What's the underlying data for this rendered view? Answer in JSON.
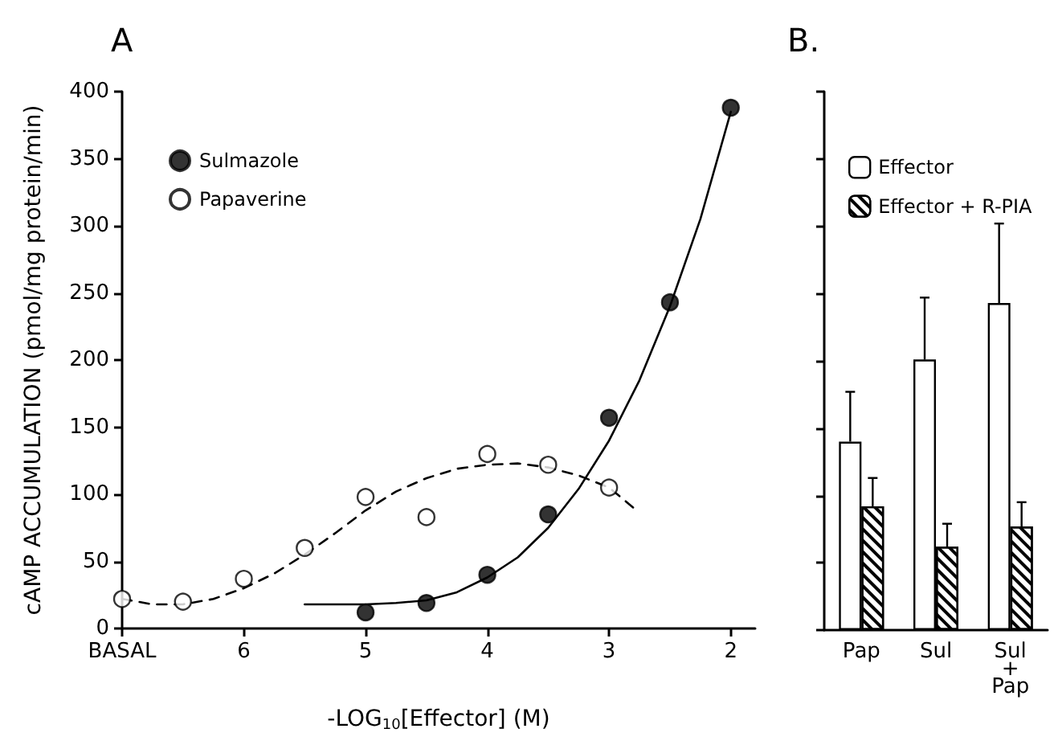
{
  "chart_data": [
    {
      "type": "scatter",
      "title": "A",
      "xlabel": "-LOG$_{10}$[Effector] (M)",
      "ylabel": "cAMP ACCUMULATION (pmol/mg protein/min)",
      "xlim": [
        7,
        1.8
      ],
      "xticks": [
        {
          "value": 7,
          "label": "BASAL"
        },
        6,
        5,
        4,
        3,
        2
      ],
      "ylim": [
        0,
        400
      ],
      "yticks": [
        0,
        50,
        100,
        150,
        200,
        250,
        300,
        350,
        400
      ],
      "grid": false,
      "legend": "top left",
      "series": [
        {
          "name": "Sulmazole",
          "color": "#000000",
          "marker": "circle",
          "x": [
            5,
            4.5,
            4,
            3.5,
            3,
            2.5,
            2
          ],
          "values": [
            12,
            19,
            40,
            85,
            157,
            243,
            388
          ]
        },
        {
          "name": "Papaverine",
          "color": "#ffffff",
          "marker": "circle",
          "x": [
            7,
            6.5,
            6,
            5.5,
            5,
            4.5,
            4,
            3.5,
            3
          ],
          "values": [
            22,
            20,
            37,
            60,
            98,
            83,
            130,
            122,
            105
          ]
        },
        {
          "type": "line",
          "color": "#000000",
          "line_style": "solid",
          "marker": "none",
          "x": [
            5.5,
            5,
            4.75,
            4.5,
            4.25,
            4,
            3.75,
            3.5,
            3.25,
            3,
            2.75,
            2.5,
            2.25,
            2
          ],
          "values": [
            18,
            18,
            19,
            21,
            27,
            38,
            53,
            75,
            104,
            140,
            185,
            240,
            305,
            385
          ]
        },
        {
          "type": "line",
          "color": "#000000",
          "line_style": "dashed",
          "marker": "none",
          "x": [
            7,
            6.75,
            6.5,
            6.25,
            6,
            5.75,
            5.5,
            5.25,
            5,
            4.75,
            4.5,
            4.25,
            4,
            3.75,
            3.5,
            3.25,
            3,
            2.8
          ],
          "values": [
            22,
            18,
            18,
            22,
            30,
            41,
            55,
            71,
            88,
            102,
            112,
            119,
            122,
            123,
            120,
            114,
            105,
            90
          ]
        }
      ]
    },
    {
      "type": "bar",
      "title": "B.",
      "categories": [
        "Pap",
        "Sul",
        "Sul\n+\nPap"
      ],
      "ylim": [
        0,
        400
      ],
      "yticks": [
        {
          "value": 0,
          "label": null
        },
        {
          "value": 50,
          "label": null
        },
        {
          "value": 100,
          "label": null
        },
        {
          "value": 150,
          "label": null
        },
        {
          "value": 200,
          "label": null
        },
        {
          "value": 250,
          "label": null
        },
        {
          "value": 300,
          "label": null
        },
        {
          "value": 350,
          "label": null
        },
        {
          "value": 400,
          "label": null
        }
      ],
      "tick_labels": "x",
      "grid": false,
      "legend": "top left",
      "series": [
        {
          "name": "Effector",
          "color": "#ffffff",
          "values": [
            140,
            201,
            243
          ],
          "errors": [
            [
              140,
              177
            ],
            [
              201,
              247
            ],
            [
              243,
              302
            ]
          ]
        },
        {
          "name": "Effector + R-PIA",
          "color": "#000000",
          "values": [
            92,
            62,
            77
          ],
          "errors": [
            [
              92,
              113
            ],
            [
              62,
              79
            ],
            [
              77,
              95
            ]
          ]
        }
      ]
    }
  ]
}
